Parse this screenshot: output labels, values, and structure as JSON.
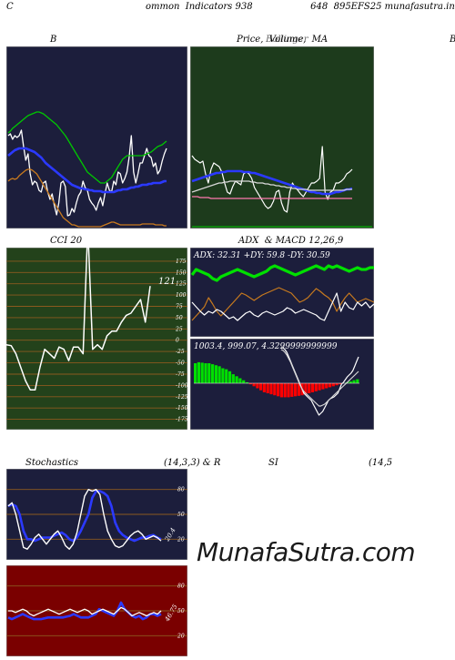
{
  "header": {
    "left": "C",
    "center": "ommon  Indicators 938                    648  895EFS25 munafasutra.in"
  },
  "labels": {
    "bb": "B",
    "price": "Price,  Volume,  MA",
    "price_overlap": "Bollinger",
    "right_edge": "B",
    "cci": "CCI 20",
    "adx": "ADX  & MACD 12,26,9",
    "stoch": "Stochastics",
    "stoch_params": "(14,3,3) & R",
    "rsi": "SI",
    "rsi_params": "(14,5",
    "watermark": "MunafaSutra.com"
  },
  "colors": {
    "navy_bg": "#1c1e3c",
    "green_bg": "#1d3b1c",
    "cci_bg": "#23421b",
    "red_bg": "#7a0000",
    "grid_brown": "#8b5a1f"
  },
  "chart_data": [
    {
      "id": "bollinger",
      "type": "line",
      "series": [
        {
          "color": "#ffffff",
          "values": [
            98,
            96,
            102,
            98,
            100,
            98,
            92,
            110,
            125,
            118,
            140,
            152,
            148,
            150,
            158,
            160,
            150,
            148,
            160,
            168,
            162,
            175,
            185,
            172,
            150,
            148,
            154,
            186,
            185,
            178,
            182,
            172,
            164,
            160,
            148,
            155,
            158,
            168,
            172,
            175,
            180,
            172,
            166,
            175,
            162,
            150,
            158,
            160,
            148,
            152,
            138,
            140,
            150,
            145,
            138,
            122,
            98,
            138,
            150,
            140,
            128,
            128,
            120,
            112,
            120,
            122,
            132,
            128,
            140,
            136,
            126,
            118,
            112
          ]
        },
        {
          "color": "#2b39ff",
          "values": [
            120,
            118,
            116,
            114,
            113,
            112,
            112,
            112,
            112,
            113,
            114,
            115,
            116,
            118,
            120,
            122,
            125,
            128,
            130,
            132,
            134,
            136,
            138,
            140,
            142,
            144,
            146,
            148,
            150,
            152,
            153,
            154,
            155,
            156,
            156,
            157,
            157,
            158,
            158,
            159,
            159,
            159,
            159,
            160,
            160,
            160,
            160,
            160,
            160,
            159,
            158,
            158,
            157,
            157,
            157,
            156,
            155,
            155,
            154,
            154,
            153,
            152,
            152,
            152,
            151,
            151,
            150,
            150,
            150,
            150,
            149,
            148,
            148
          ]
        },
        {
          "color": "#00c800",
          "values": [
            95,
            93,
            90,
            88,
            86,
            84,
            82,
            80,
            78,
            76,
            75,
            74,
            73,
            72,
            72,
            73,
            74,
            76,
            78,
            80,
            82,
            84,
            86,
            89,
            92,
            95,
            98,
            102,
            106,
            110,
            114,
            118,
            122,
            126,
            130,
            134,
            138,
            140,
            142,
            144,
            146,
            148,
            150,
            150,
            150,
            148,
            146,
            144,
            140,
            136,
            132,
            128,
            124,
            122,
            120,
            120,
            120,
            120,
            120,
            120,
            120,
            120,
            119,
            118,
            117,
            116,
            114,
            112,
            110,
            109,
            108,
            106,
            104
          ]
        },
        {
          "color": "#c87a1e",
          "values": [
            148,
            146,
            145,
            146,
            145,
            142,
            140,
            138,
            136,
            135,
            135,
            136,
            138,
            140,
            144,
            148,
            152,
            156,
            160,
            164,
            168,
            172,
            176,
            180,
            184,
            188,
            190,
            192,
            194,
            196,
            196,
            197,
            198,
            198,
            198,
            198,
            198,
            198,
            198,
            198,
            198,
            198,
            198,
            197,
            196,
            195,
            194,
            193,
            193,
            194,
            195,
            196,
            196,
            196,
            196,
            196,
            196,
            196,
            196,
            196,
            196,
            195,
            195,
            195,
            195,
            195,
            195,
            196,
            196,
            196,
            196,
            197,
            197
          ]
        }
      ]
    },
    {
      "id": "price_volume_ma",
      "type": "line",
      "series": [
        {
          "color": "#ffffff",
          "values": [
            120,
            124,
            126,
            128,
            126,
            140,
            150,
            135,
            128,
            130,
            132,
            138,
            150,
            160,
            162,
            154,
            148,
            150,
            152,
            140,
            138,
            140,
            145,
            155,
            160,
            165,
            170,
            175,
            178,
            176,
            170,
            160,
            158,
            172,
            180,
            182,
            160,
            150,
            155,
            158,
            162,
            165,
            160,
            155,
            150,
            150,
            148,
            145,
            110,
            160,
            168,
            160,
            158,
            150,
            150,
            148,
            145,
            140,
            138,
            135
          ]
        },
        {
          "color": "#2b39ff",
          "values": [
            148,
            147,
            146,
            145,
            144,
            143,
            142,
            141,
            140,
            139,
            139,
            138,
            138,
            137,
            137,
            137,
            137,
            137,
            137,
            138,
            138,
            138,
            139,
            139,
            140,
            141,
            142,
            143,
            144,
            145,
            146,
            147,
            148,
            149,
            150,
            151,
            152,
            153,
            154,
            155,
            156,
            157,
            158,
            159,
            160,
            160,
            161,
            161,
            162,
            162,
            162,
            162,
            161,
            160,
            160,
            159,
            158,
            157,
            157,
            156
          ]
        },
        {
          "color": "#d8d8d8",
          "values": [
            160,
            159,
            158,
            157,
            156,
            155,
            154,
            153,
            152,
            151,
            150,
            150,
            149,
            149,
            148,
            148,
            148,
            148,
            148,
            148,
            148,
            148,
            149,
            149,
            150,
            150,
            150,
            151,
            151,
            152,
            152,
            153,
            153,
            154,
            154,
            155,
            155,
            156,
            156,
            157,
            157,
            157,
            157,
            158,
            158,
            158,
            158,
            158,
            158,
            158,
            158,
            158,
            158,
            158,
            158,
            158,
            158,
            157,
            157,
            157
          ]
        },
        {
          "color": "#ff7ab0",
          "values": [
            165,
            165,
            165,
            166,
            166,
            166,
            166,
            167,
            167,
            167,
            167,
            167,
            167,
            167,
            167,
            167,
            167,
            167,
            167,
            167,
            167,
            167,
            167,
            167,
            167,
            167,
            167,
            167,
            167,
            167,
            167,
            167,
            167,
            167,
            167,
            167,
            167,
            167,
            167,
            167,
            167,
            167,
            167,
            167,
            167,
            167,
            167,
            167,
            167,
            167,
            167,
            167,
            167,
            167,
            167,
            167,
            167,
            167,
            167,
            167
          ]
        }
      ]
    },
    {
      "id": "cci",
      "type": "line",
      "yticks": [
        "175",
        "150",
        "125",
        "100",
        "75",
        "50",
        "25",
        "0",
        "-25",
        "-50",
        "-75",
        "-100",
        "-125",
        "-150",
        "-175"
      ],
      "last_label": "121",
      "series": [
        {
          "color": "#ffffff",
          "values": [
            -10,
            -12,
            -30,
            -60,
            -90,
            -110,
            -110,
            -60,
            -20,
            -30,
            -40,
            -15,
            -20,
            -45,
            -15,
            -15,
            -30,
            250,
            -20,
            -10,
            -20,
            10,
            20,
            20,
            40,
            55,
            60,
            75,
            90,
            40,
            120
          ]
        }
      ]
    },
    {
      "id": "adx",
      "type": "line",
      "readout": "ADX: 32.31  +DY: 59.8  -DY: 30.59",
      "series": [
        {
          "color": "#00e000",
          "values": [
            30,
            24,
            26,
            28,
            30,
            34,
            36,
            32,
            30,
            28,
            26,
            24,
            26,
            28,
            30,
            32,
            30,
            28,
            26,
            22,
            20,
            22,
            24,
            26,
            28,
            30,
            28,
            26,
            24,
            22,
            20,
            22,
            24,
            20,
            22,
            20,
            22,
            24,
            26,
            24,
            22,
            24,
            24,
            22,
            22
          ]
        },
        {
          "color": "#c87a1e",
          "values": [
            80,
            75,
            70,
            65,
            55,
            62,
            70,
            75,
            70,
            65,
            60,
            55,
            50,
            52,
            55,
            58,
            55,
            52,
            50,
            48,
            46,
            44,
            46,
            48,
            50,
            55,
            60,
            58,
            55,
            50,
            45,
            48,
            52,
            55,
            60,
            70,
            62,
            55,
            50,
            55,
            60,
            58,
            56,
            58,
            60
          ]
        },
        {
          "color": "#ffffff",
          "values": [
            60,
            65,
            70,
            74,
            70,
            72,
            68,
            70,
            74,
            78,
            76,
            80,
            76,
            72,
            70,
            74,
            76,
            72,
            70,
            72,
            74,
            72,
            70,
            66,
            68,
            72,
            70,
            68,
            70,
            72,
            74,
            78,
            80,
            70,
            60,
            50,
            70,
            60,
            66,
            68,
            60,
            64,
            60,
            66,
            62
          ]
        }
      ]
    },
    {
      "id": "macd",
      "type": "bar",
      "readout": "1003.4,  999.07,  4.3299999999999",
      "histogram": [
        40,
        42,
        41,
        40,
        40,
        38,
        36,
        34,
        30,
        28,
        24,
        18,
        14,
        10,
        6,
        2,
        -2,
        -6,
        -10,
        -14,
        -18,
        -20,
        -22,
        -24,
        -26,
        -28,
        -28,
        -28,
        -27,
        -26,
        -25,
        -24,
        -22,
        -20,
        -18,
        -16,
        -14,
        -12,
        -10,
        -8,
        -6,
        -4,
        -2,
        0,
        2,
        4,
        6,
        8
      ],
      "series": [
        {
          "color": "#ffffff",
          "values": [
            10,
            10,
            12,
            15,
            20,
            25,
            30,
            35,
            40,
            45,
            50,
            55,
            60,
            62,
            64,
            66,
            68,
            72,
            76,
            80,
            84,
            82,
            80,
            76,
            72,
            68,
            66,
            65,
            64,
            62,
            60,
            55,
            50,
            48,
            45,
            42,
            40,
            38,
            35,
            30,
            25,
            20
          ]
        },
        {
          "color": "#d8d8d8",
          "values": [
            12,
            13,
            15,
            18,
            22,
            26,
            31,
            36,
            41,
            46,
            51,
            55,
            58,
            60,
            62,
            64,
            66,
            68,
            70,
            72,
            74,
            74,
            73,
            72,
            70,
            68,
            66,
            64,
            62,
            60,
            58,
            56,
            54,
            52,
            50,
            48,
            46,
            44,
            42,
            40,
            38,
            36
          ]
        }
      ]
    },
    {
      "id": "stochastics",
      "type": "line",
      "yticks": [
        "80",
        "50",
        "20"
      ],
      "last_label": "20.4",
      "series": [
        {
          "color": "#2b39ff",
          "values": [
            60,
            62,
            60,
            50,
            30,
            20,
            20,
            18,
            20,
            22,
            22,
            22,
            24,
            26,
            28,
            25,
            20,
            18,
            22,
            30,
            40,
            50,
            70,
            78,
            78,
            76,
            72,
            60,
            40,
            30,
            25,
            22,
            20,
            18,
            20,
            22,
            22,
            24,
            25,
            22,
            20
          ]
        },
        {
          "color": "#ffffff",
          "values": [
            60,
            64,
            50,
            30,
            10,
            8,
            14,
            22,
            26,
            20,
            14,
            20,
            26,
            30,
            22,
            12,
            8,
            14,
            28,
            50,
            72,
            80,
            78,
            80,
            74,
            50,
            30,
            20,
            12,
            10,
            12,
            18,
            24,
            28,
            30,
            26,
            20,
            22,
            24,
            22,
            18
          ]
        }
      ]
    },
    {
      "id": "rsi",
      "type": "line",
      "yticks": [
        "80",
        "50",
        "20"
      ],
      "last_label": "46.75",
      "series": [
        {
          "color": "#2b39ff",
          "values": [
            42,
            40,
            42,
            44,
            46,
            44,
            42,
            40,
            40,
            40,
            41,
            42,
            42,
            42,
            42,
            42,
            43,
            44,
            46,
            44,
            42,
            42,
            42,
            44,
            46,
            52,
            50,
            48,
            46,
            44,
            50,
            60,
            52,
            48,
            44,
            42,
            44,
            40,
            42,
            46,
            46,
            44,
            46
          ]
        },
        {
          "color": "#ffffff",
          "values": [
            50,
            50,
            48,
            50,
            52,
            50,
            46,
            44,
            46,
            48,
            50,
            52,
            50,
            48,
            46,
            48,
            50,
            52,
            50,
            48,
            50,
            52,
            50,
            46,
            48,
            50,
            52,
            50,
            48,
            46,
            50,
            54,
            52,
            48,
            44,
            46,
            48,
            46,
            44,
            46,
            48,
            46,
            50
          ]
        }
      ]
    }
  ]
}
